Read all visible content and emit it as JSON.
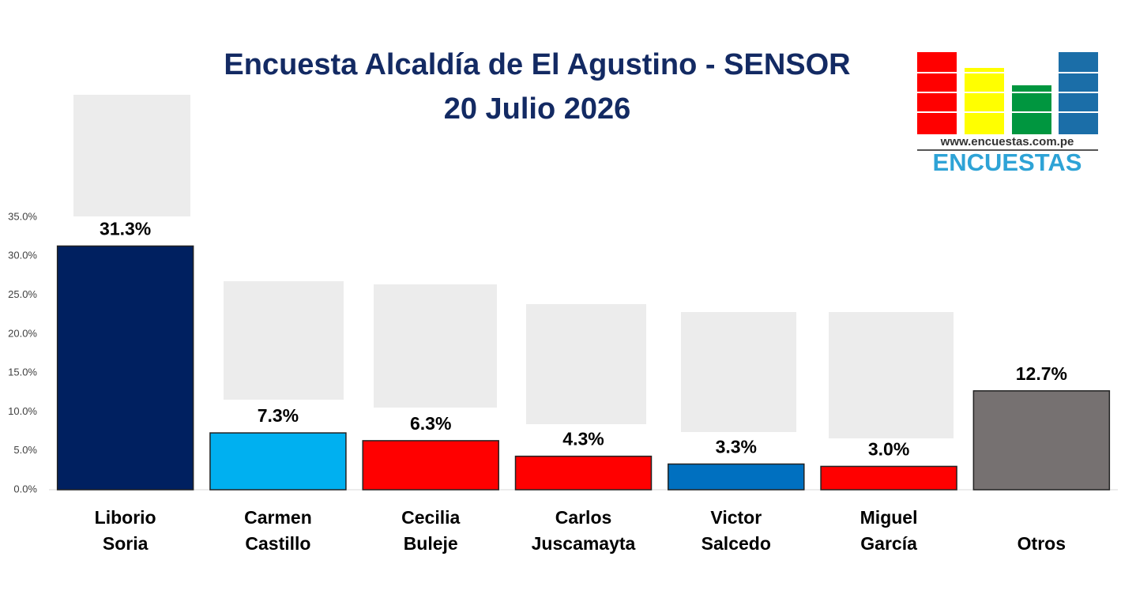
{
  "chart_data": {
    "type": "bar",
    "title": [
      "Encuesta Alcaldía de El Agustino -  SENSOR",
      "20 Julio 2026"
    ],
    "categories": [
      [
        "Liborio",
        "Soria"
      ],
      [
        "Carmen",
        "Castillo"
      ],
      [
        "Cecilia",
        "Buleje"
      ],
      [
        "Carlos",
        "Juscamayta"
      ],
      [
        "Victor",
        "Salcedo"
      ],
      [
        "Miguel",
        "García"
      ],
      [
        "Otros"
      ]
    ],
    "values": [
      31.3,
      7.3,
      6.3,
      4.3,
      3.3,
      3.0,
      12.7
    ],
    "value_labels": [
      "31.3%",
      "7.3%",
      "6.3%",
      "4.3%",
      "3.3%",
      "3.0%",
      "12.7%"
    ],
    "colors": [
      "#002060",
      "#00b0f0",
      "#ff0000",
      "#ff0000",
      "#0070c0",
      "#ff0000",
      "#767171"
    ],
    "ylim": [
      0,
      35
    ],
    "yticks": [
      {
        "value": 0,
        "label": "0.0%"
      },
      {
        "value": 5,
        "label": "5.0%"
      },
      {
        "value": 10,
        "label": "10.0%"
      },
      {
        "value": 15,
        "label": "15.0%"
      },
      {
        "value": 20,
        "label": "20.0%"
      },
      {
        "value": 25,
        "label": "25.0%"
      },
      {
        "value": 30,
        "label": "30.0%"
      },
      {
        "value": 35,
        "label": "35.0%"
      }
    ],
    "logo": {
      "url": "www.encuestas.com.pe",
      "name": "ENCUESTAS"
    }
  }
}
